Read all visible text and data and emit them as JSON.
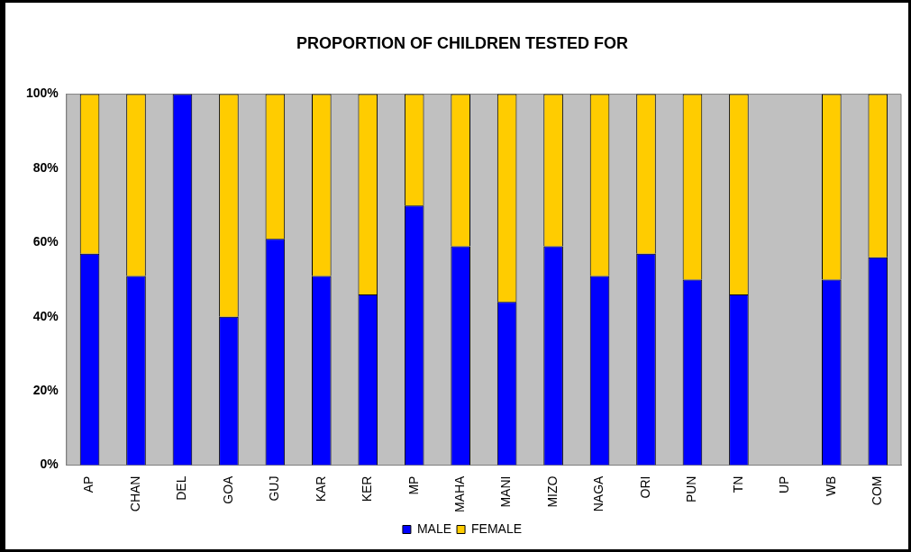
{
  "chart_data": {
    "type": "bar",
    "title": "PROPORTION OF CHILDREN TESTED FOR",
    "stacked": true,
    "categories": [
      "AP",
      "CHAN",
      "DEL",
      "GOA",
      "GUJ",
      "KAR",
      "KER",
      "MP",
      "MAHA",
      "MANI",
      "MIZO",
      "NAGA",
      "ORI",
      "PUN",
      "TN",
      "UP",
      "WB",
      "COM"
    ],
    "series": [
      {
        "name": "MALE",
        "color": "#0000ff",
        "values": [
          57,
          51,
          100,
          40,
          61,
          51,
          46,
          70,
          59,
          44,
          59,
          51,
          57,
          50,
          46,
          null,
          50,
          56
        ]
      },
      {
        "name": "FEMALE",
        "color": "#ffcc00",
        "values": [
          43,
          49,
          0,
          60,
          39,
          49,
          54,
          30,
          41,
          56,
          41,
          49,
          43,
          50,
          54,
          null,
          50,
          44
        ]
      }
    ],
    "ylim": [
      0,
      100
    ],
    "yticks": [
      {
        "value": 0,
        "label": "0%"
      },
      {
        "value": 20,
        "label": "20%"
      },
      {
        "value": 40,
        "label": "40%"
      },
      {
        "value": 60,
        "label": "60%"
      },
      {
        "value": 80,
        "label": "80%"
      },
      {
        "value": 100,
        "label": "100%"
      }
    ],
    "grid": false,
    "legend": "bottom"
  }
}
